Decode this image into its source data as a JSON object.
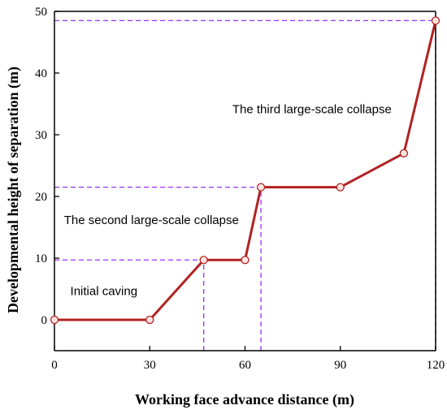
{
  "chart_data": {
    "type": "line",
    "xlabel": "Working face advance distance (m)",
    "ylabel": "Developmental height of separation (m)",
    "xlim": [
      0,
      120
    ],
    "ylim": [
      -5,
      50
    ],
    "xticks": [
      0,
      30,
      60,
      90,
      120
    ],
    "yticks": [
      0,
      10,
      20,
      30,
      40,
      50
    ],
    "grid": false,
    "legend": "none",
    "series": [
      {
        "x": [
          0,
          30,
          47,
          60,
          65,
          90,
          110,
          120
        ],
        "y": [
          0,
          0,
          9.7,
          9.7,
          21.5,
          21.5,
          27,
          48.5
        ]
      }
    ],
    "reference_lines": [
      {
        "orientation": "h",
        "y": 9.7,
        "x_from": 0,
        "x_to": 47
      },
      {
        "orientation": "v",
        "x": 47,
        "y_from": -5,
        "y_to": 9.7
      },
      {
        "orientation": "h",
        "y": 21.5,
        "x_from": 0,
        "x_to": 65
      },
      {
        "orientation": "v",
        "x": 65,
        "y_from": -5,
        "y_to": 21.5
      },
      {
        "orientation": "h",
        "y": 48.5,
        "x_from": 0,
        "x_to": 120
      },
      {
        "orientation": "v",
        "x": 120,
        "y_from": -5,
        "y_to": 48.5
      }
    ],
    "annotations": [
      {
        "text": "Initial caving",
        "x": 5,
        "y": 4
      },
      {
        "text": "The second large-scale collapse",
        "x": 3,
        "y": 15.5
      },
      {
        "text": "The third large-scale collapse",
        "x": 56,
        "y": 33.5
      }
    ],
    "colors": {
      "line": "#b22222",
      "marker_fill": "#ffe4e1",
      "marker_stroke": "#b22222",
      "reference": "#9b30ff"
    }
  }
}
